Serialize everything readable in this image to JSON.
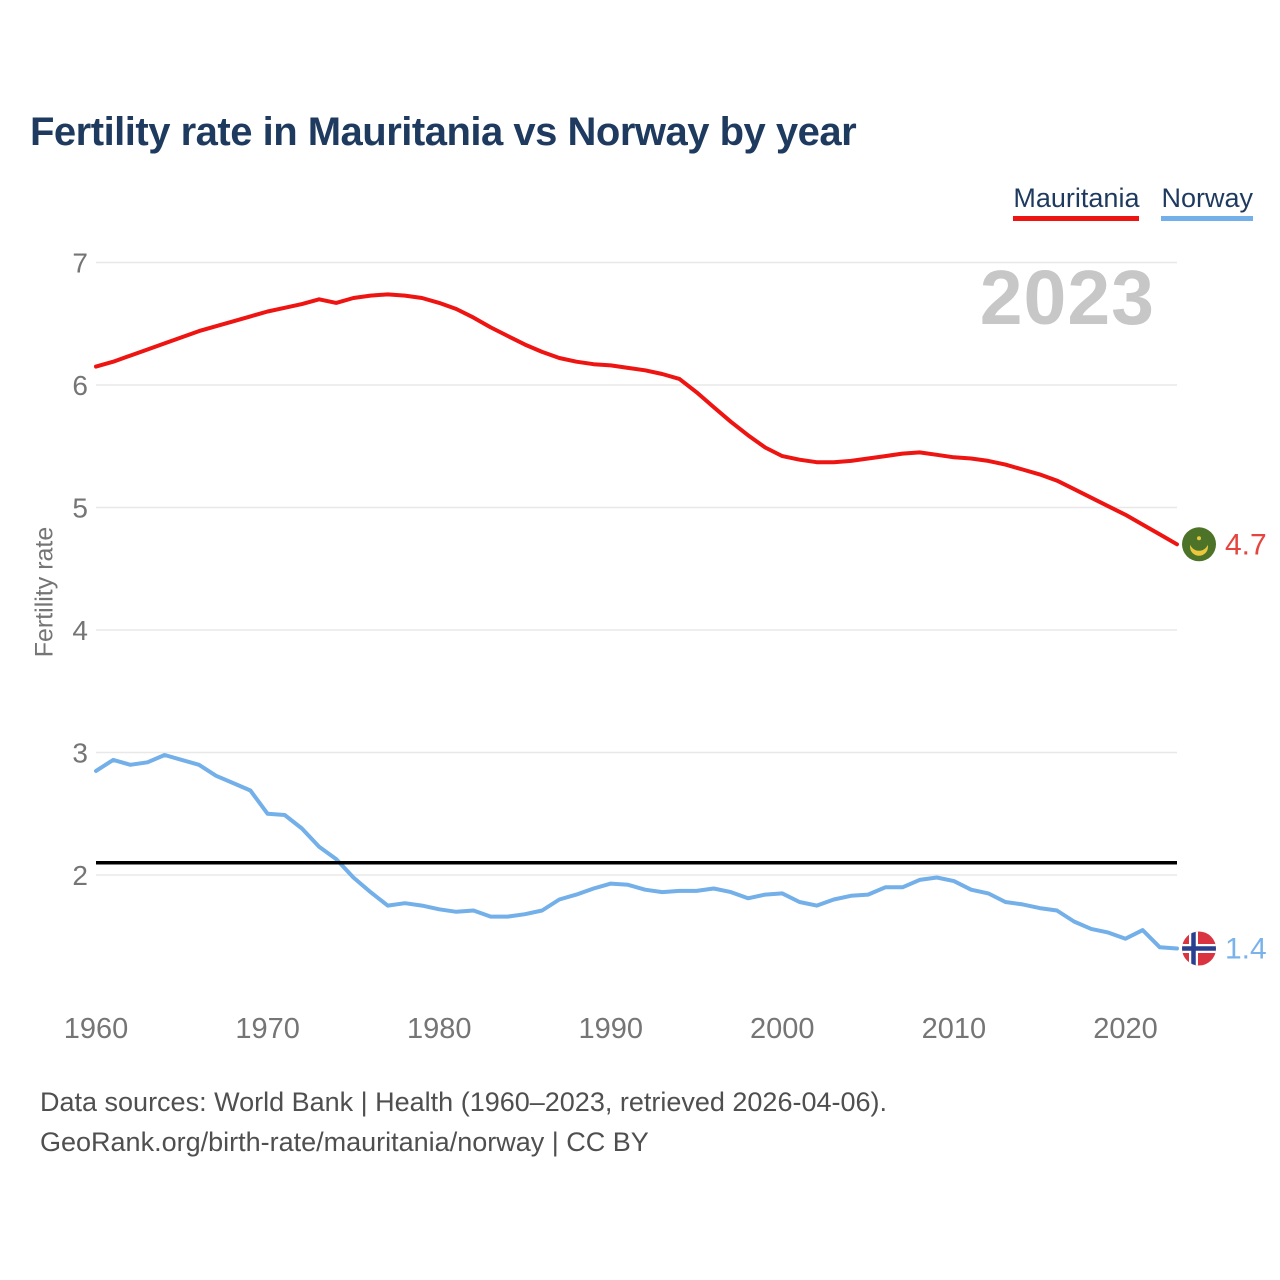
{
  "title": "Fertility rate in Mauritania vs Norway by year",
  "watermark": "2023",
  "footer": {
    "line1": "Data sources: World Bank | Health (1960–2023, retrieved 2026-04-06).",
    "line2": "GeoRank.org/birth-rate/mauritania/norway | CC BY"
  },
  "colors": {
    "title_text": "#1e3a5f",
    "axis_text": "#757575",
    "gridline": "#e8e8e8",
    "watermark": "#c7c7c7",
    "footer_text": "#4f4f4f",
    "reference_line": "#000000"
  },
  "icons": {
    "mauritania_flag": {
      "bg": "#4d7328",
      "crescent": "#eac83e"
    },
    "norway_flag": {
      "bg": "#d93440",
      "cross": "#2b3f8f",
      "outline": "#ffffff"
    }
  },
  "chart_data": {
    "type": "line",
    "title": "Fertility rate in Mauritania vs Norway by year",
    "xlabel": "",
    "ylabel": "Fertility rate",
    "xlim": [
      1960,
      2023
    ],
    "ylim": [
      1.3,
      7.15
    ],
    "xticks": [
      1960,
      1970,
      1980,
      1990,
      2000,
      2010,
      2020
    ],
    "yticks": [
      2,
      3,
      4,
      5,
      6,
      7
    ],
    "grid": true,
    "legend_position": "top-right",
    "watermark_year": "2023",
    "reference_line": {
      "value": 2.1,
      "color": "#000000"
    },
    "x": [
      1960,
      1961,
      1962,
      1963,
      1964,
      1965,
      1966,
      1967,
      1968,
      1969,
      1970,
      1971,
      1972,
      1973,
      1974,
      1975,
      1976,
      1977,
      1978,
      1979,
      1980,
      1981,
      1982,
      1983,
      1984,
      1985,
      1986,
      1987,
      1988,
      1989,
      1990,
      1991,
      1992,
      1993,
      1994,
      1995,
      1996,
      1997,
      1998,
      1999,
      2000,
      2001,
      2002,
      2003,
      2004,
      2005,
      2006,
      2007,
      2008,
      2009,
      2010,
      2011,
      2012,
      2013,
      2014,
      2015,
      2016,
      2017,
      2018,
      2019,
      2020,
      2021,
      2022,
      2023
    ],
    "series": [
      {
        "name": "Mauritania",
        "color": "#ee1411",
        "label_color": "#e5453e",
        "end_label": "4.7",
        "flag": "mauritania-flag-icon",
        "values": [
          6.15,
          6.19,
          6.24,
          6.29,
          6.34,
          6.39,
          6.44,
          6.48,
          6.52,
          6.56,
          6.6,
          6.63,
          6.66,
          6.7,
          6.67,
          6.71,
          6.73,
          6.74,
          6.73,
          6.71,
          6.67,
          6.62,
          6.55,
          6.47,
          6.4,
          6.33,
          6.27,
          6.22,
          6.19,
          6.17,
          6.16,
          6.14,
          6.12,
          6.09,
          6.05,
          5.94,
          5.82,
          5.7,
          5.59,
          5.49,
          5.42,
          5.39,
          5.37,
          5.37,
          5.38,
          5.4,
          5.42,
          5.44,
          5.45,
          5.43,
          5.41,
          5.4,
          5.38,
          5.35,
          5.31,
          5.27,
          5.22,
          5.15,
          5.08,
          5.01,
          4.94,
          4.86,
          4.78,
          4.7
        ]
      },
      {
        "name": "Norway",
        "color": "#73afe8",
        "label_color": "#7ab3ea",
        "end_label": "1.4",
        "flag": "norway-flag-icon",
        "values": [
          2.85,
          2.94,
          2.9,
          2.92,
          2.98,
          2.94,
          2.9,
          2.81,
          2.75,
          2.69,
          2.5,
          2.49,
          2.38,
          2.23,
          2.13,
          1.98,
          1.86,
          1.75,
          1.77,
          1.75,
          1.72,
          1.7,
          1.71,
          1.66,
          1.66,
          1.68,
          1.71,
          1.8,
          1.84,
          1.89,
          1.93,
          1.92,
          1.88,
          1.86,
          1.87,
          1.87,
          1.89,
          1.86,
          1.81,
          1.84,
          1.85,
          1.78,
          1.75,
          1.8,
          1.83,
          1.84,
          1.9,
          1.9,
          1.96,
          1.98,
          1.95,
          1.88,
          1.85,
          1.78,
          1.76,
          1.73,
          1.71,
          1.62,
          1.56,
          1.53,
          1.48,
          1.55,
          1.41,
          1.4
        ]
      }
    ]
  }
}
